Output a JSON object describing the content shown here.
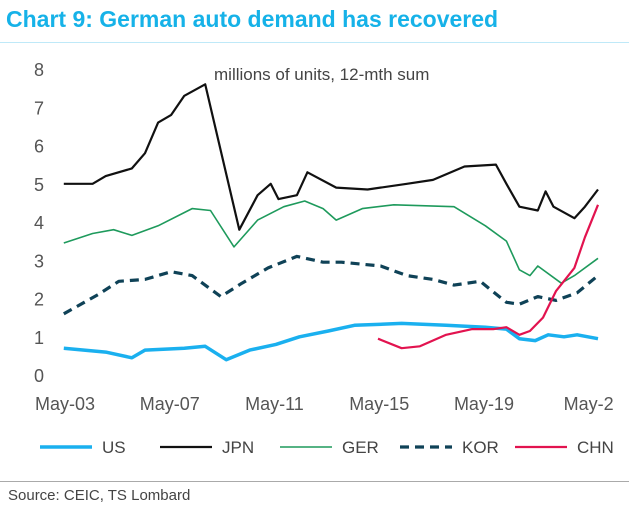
{
  "title": "Chart 9: German auto demand has recovered",
  "source": "Source: CEIC, TS Lombard",
  "chart_data": {
    "type": "line",
    "title": "Chart 9: German auto demand has recovered",
    "annotation": "millions of units, 12-mth sum",
    "xlabel": "",
    "ylabel": "",
    "ylim": [
      0,
      8
    ],
    "xlim": [
      2003.33,
      2023.8
    ],
    "yticks": [
      "0",
      "1",
      "2",
      "3",
      "4",
      "5",
      "6",
      "7",
      "8"
    ],
    "xticks": [
      {
        "label": "May-03",
        "x": 2003.33
      },
      {
        "label": "May-07",
        "x": 2007.33
      },
      {
        "label": "May-11",
        "x": 2011.33
      },
      {
        "label": "May-15",
        "x": 2015.33
      },
      {
        "label": "May-19",
        "x": 2019.33
      },
      {
        "label": "May-2",
        "x": 2023.33
      }
    ],
    "legend_position": "bottom",
    "series": [
      {
        "name": "US",
        "color": "#1ab0ef",
        "dash": "solid",
        "width": 3.5,
        "x": [
          2003.4,
          2005,
          2006,
          2006.5,
          2008,
          2008.8,
          2009.6,
          2010.5,
          2011.5,
          2012.4,
          2013.5,
          2014.5,
          2016.3,
          2018,
          2019.5,
          2020.3,
          2020.8,
          2021.4,
          2021.9,
          2022.5,
          2023,
          2023.8
        ],
        "y": [
          0.7,
          0.6,
          0.45,
          0.65,
          0.7,
          0.75,
          0.4,
          0.65,
          0.8,
          1.0,
          1.15,
          1.3,
          1.35,
          1.3,
          1.25,
          1.2,
          0.95,
          0.9,
          1.05,
          1.0,
          1.05,
          0.95
        ]
      },
      {
        "name": "JPN",
        "color": "#111111",
        "dash": "solid",
        "width": 2.2,
        "x": [
          2003.4,
          2004.5,
          2005,
          2006,
          2006.5,
          2007,
          2007.5,
          2008,
          2008.8,
          2010.1,
          2010.8,
          2011.3,
          2011.6,
          2012.3,
          2012.7,
          2013.8,
          2015,
          2016.5,
          2017.5,
          2018.7,
          2019.9,
          2020.3,
          2020.8,
          2021.5,
          2021.8,
          2022.1,
          2022.9,
          2023.3,
          2023.8
        ],
        "y": [
          5.0,
          5.0,
          5.2,
          5.4,
          5.8,
          6.6,
          6.8,
          7.3,
          7.6,
          3.8,
          4.7,
          5.0,
          4.6,
          4.7,
          5.3,
          4.9,
          4.85,
          5.0,
          5.1,
          5.45,
          5.5,
          5.0,
          4.4,
          4.3,
          4.8,
          4.4,
          4.1,
          4.4,
          4.85
        ]
      },
      {
        "name": "GER",
        "color": "#1e9a5c",
        "dash": "solid",
        "width": 1.6,
        "x": [
          2003.4,
          2004.5,
          2005.3,
          2006,
          2007,
          2008.3,
          2009,
          2009.9,
          2010.8,
          2011.8,
          2012.6,
          2013.3,
          2013.8,
          2014.8,
          2016,
          2018.3,
          2019.5,
          2020.3,
          2020.8,
          2021.2,
          2021.5,
          2022.4,
          2022.9,
          2023.8
        ],
        "y": [
          3.45,
          3.7,
          3.8,
          3.65,
          3.9,
          4.35,
          4.3,
          3.35,
          4.05,
          4.4,
          4.55,
          4.35,
          4.05,
          4.35,
          4.45,
          4.4,
          3.9,
          3.5,
          2.75,
          2.6,
          2.85,
          2.4,
          2.6,
          3.05
        ]
      },
      {
        "name": "KOR",
        "color": "#0f4257",
        "dash": "dashed",
        "width": 3.2,
        "x": [
          2003.4,
          2004.7,
          2005.5,
          2006.5,
          2007.5,
          2008.3,
          2009.4,
          2010.2,
          2011.2,
          2012.3,
          2013.3,
          2014,
          2015.5,
          2016.5,
          2017.5,
          2018.3,
          2019.3,
          2020.3,
          2020.8,
          2021.5,
          2022.2,
          2023,
          2023.8
        ],
        "y": [
          1.6,
          2.1,
          2.45,
          2.5,
          2.7,
          2.6,
          2.05,
          2.4,
          2.8,
          3.1,
          2.95,
          2.95,
          2.85,
          2.6,
          2.5,
          2.35,
          2.45,
          1.9,
          1.85,
          2.05,
          1.95,
          2.15,
          2.6
        ]
      },
      {
        "name": "CHN",
        "color": "#e2134f",
        "dash": "solid",
        "width": 2.2,
        "x": [
          2015.4,
          2016.3,
          2017,
          2018,
          2019,
          2019.8,
          2020.3,
          2020.8,
          2021.2,
          2021.7,
          2022.2,
          2022.9,
          2023.3,
          2023.8
        ],
        "y": [
          0.95,
          0.7,
          0.75,
          1.05,
          1.2,
          1.2,
          1.25,
          1.05,
          1.15,
          1.5,
          2.2,
          2.8,
          3.6,
          4.45
        ]
      }
    ]
  }
}
